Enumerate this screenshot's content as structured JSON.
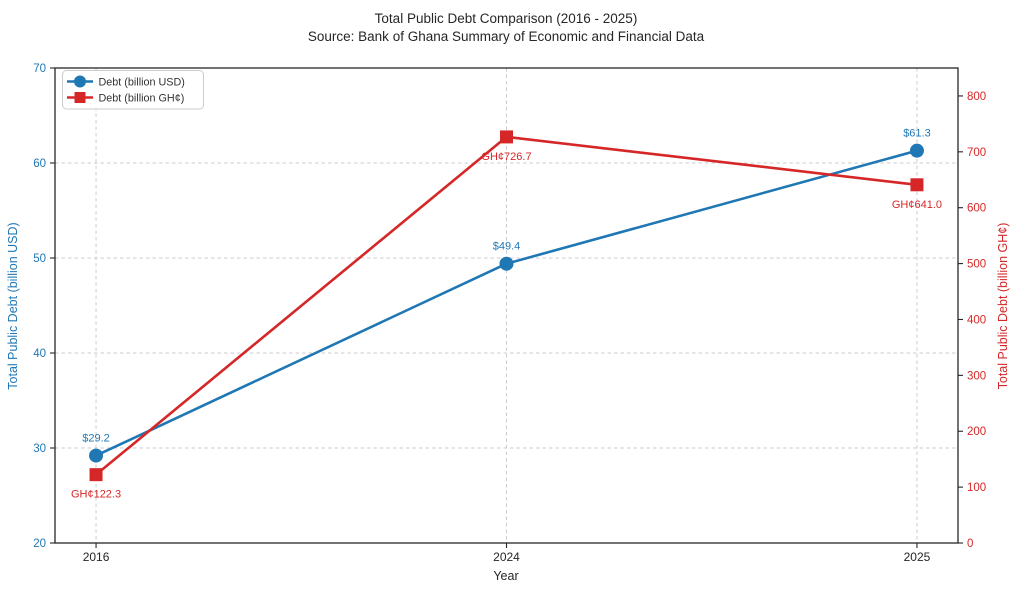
{
  "title": "Total Public Debt Comparison (2016 - 2025)",
  "subtitle": "Source: Bank of Ghana Summary of Economic and Financial Data",
  "chart_data": {
    "type": "line",
    "categories": [
      "2016",
      "2024",
      "2025"
    ],
    "xlabel": "Year",
    "grid": true,
    "grid_color": "#cccccc",
    "frame_color": "#262626",
    "text_color": "#262626",
    "legend_position": "upper left",
    "left_axis": {
      "label": "Total Public Debt (billion USD)",
      "color": "#1f77b4",
      "ylim": [
        20,
        70
      ],
      "ticks": [
        20,
        30,
        40,
        50,
        60,
        70
      ]
    },
    "right_axis": {
      "label": "Total Public Debt (billion GH¢)",
      "color": "#d62728",
      "ylim": [
        0,
        850
      ],
      "ticks": [
        0,
        100,
        200,
        300,
        400,
        500,
        600,
        700,
        800
      ]
    },
    "series": [
      {
        "name": "Debt (billion USD)",
        "axis": "left",
        "color": "#1f77b4",
        "marker": "circle",
        "values": [
          29.2,
          49.4,
          61.3
        ],
        "point_labels": [
          "$29.2",
          "$49.4",
          "$61.3"
        ],
        "label_position": "above"
      },
      {
        "name": "Debt (billion GH¢)",
        "axis": "right",
        "color": "#d62728",
        "marker": "square",
        "values": [
          122.3,
          726.7,
          641.0
        ],
        "point_labels": [
          "GH¢122.3",
          "GH¢726.7",
          "GH¢641.0"
        ],
        "label_position": "below"
      }
    ]
  }
}
